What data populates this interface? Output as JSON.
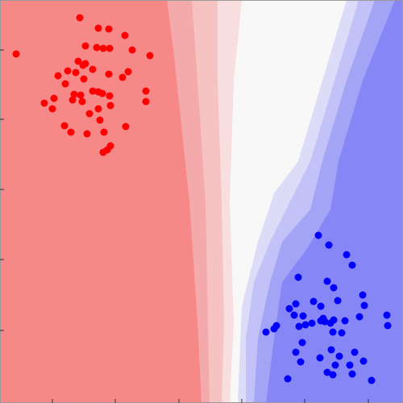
{
  "chart_data": {
    "type": "scatter",
    "xlim": [
      0,
      100
    ],
    "ylim": [
      0,
      100
    ],
    "xticks": [
      13,
      28.6,
      44.4,
      60,
      75.6,
      91.4
    ],
    "yticks": [
      87.6,
      70.4,
      53,
      35.6,
      18
    ],
    "series": [
      {
        "color": "#ff0000",
        "x": [
          19.8,
          24.4,
          27,
          31,
          21.2,
          24,
          25.6,
          27.2,
          32.8,
          37.2,
          4,
          19.4,
          21.2,
          20.6,
          16.8,
          14.4,
          18.8,
          23,
          31.8,
          30.4,
          27,
          20.8,
          16.2,
          23,
          18.4,
          20,
          24.4,
          25.4,
          27.2,
          36.2,
          18,
          13.4,
          11,
          20.4,
          27.4,
          36.2,
          13,
          24.4,
          22.2,
          16,
          17.6,
          24.8,
          31.2,
          21.6,
          25.8,
          27.4,
          26.6,
          25.6
        ],
        "values": [
          95.6,
          93,
          92.8,
          91.2,
          88.6,
          88.2,
          88,
          88,
          87.6,
          86.2,
          86.6,
          84.8,
          84.2,
          83.8,
          82.4,
          81.2,
          82,
          82.8,
          82.2,
          80.8,
          81.6,
          80.4,
          79.2,
          77.4,
          76.6,
          76.4,
          77.2,
          76.8,
          76.2,
          77.4,
          75.2,
          75.6,
          74.4,
          74.8,
          73.8,
          74.8,
          73,
          73,
          71.8,
          68.8,
          67.2,
          70.2,
          68.6,
          66.8,
          67.2,
          63.8,
          62.8,
          62.2
        ]
      },
      {
        "color": "#0000ff",
        "x": [
          79,
          81.6,
          86,
          87.4,
          74,
          81.2,
          82.8,
          77.8,
          90,
          73.4,
          83.8,
          71.8,
          79.6,
          90.4,
          75.2,
          73,
          80.2,
          79.6,
          80.6,
          82.8,
          89.2,
          96,
          85.6,
          77.4,
          82,
          68.6,
          74.2,
          68,
          75.8,
          82.6,
          84.8,
          66,
          75,
          96.2,
          73.4,
          82.2,
          88,
          74.6,
          79.4,
          84.2,
          90.2,
          83.2,
          86.8,
          81.2,
          82.6,
          87.4,
          71.4,
          92.2
        ],
        "values": [
          41.6,
          39.2,
          36.8,
          34.2,
          31.2,
          30.2,
          28.6,
          25.2,
          26.8,
          24.6,
          25.4,
          23.4,
          24,
          24.2,
          21.6,
          21.8,
          21,
          20.4,
          20.2,
          20.6,
          21.4,
          21.8,
          20.4,
          19.8,
          19.8,
          19.2,
          19,
          18.4,
          19.4,
          17.6,
          17.4,
          17.6,
          15,
          19.2,
          12.6,
          13.2,
          12.6,
          10.2,
          11.2,
          11.6,
          10.4,
          9.4,
          9.4,
          7.6,
          7,
          7.2,
          6,
          5.6
        ]
      }
    ]
  }
}
